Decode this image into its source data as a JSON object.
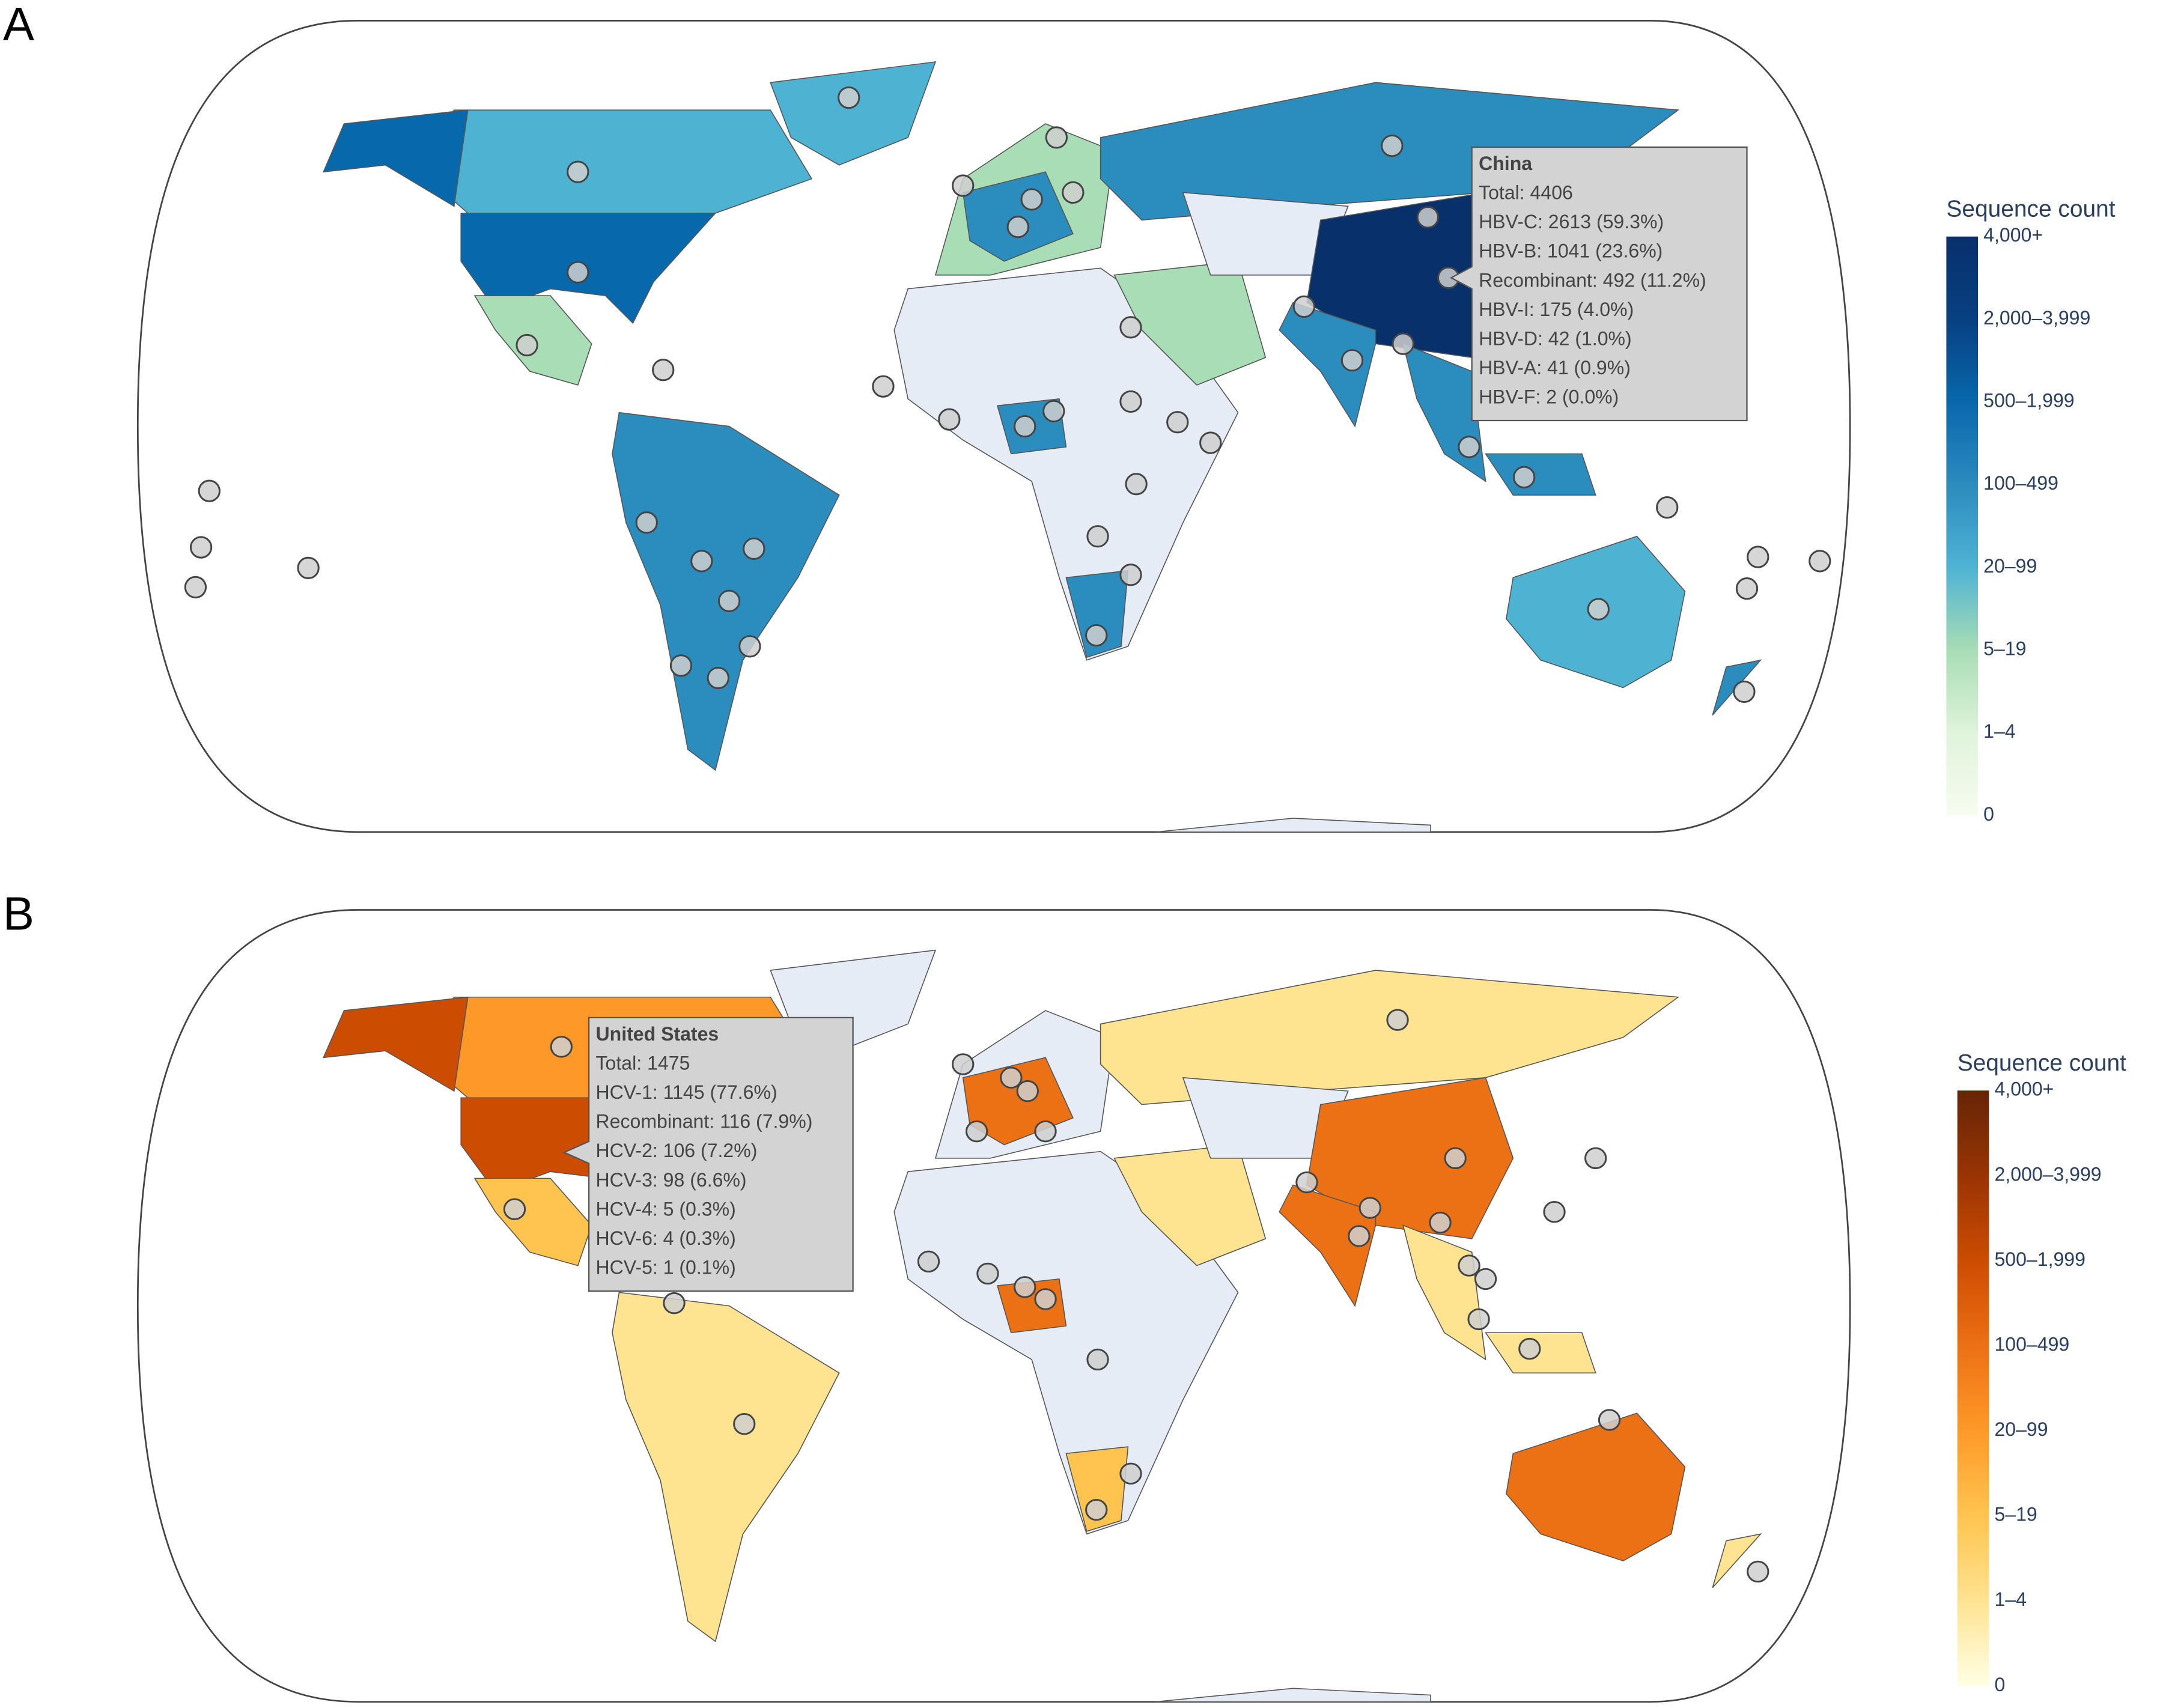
{
  "panels": [
    {
      "label": "A",
      "legend": {
        "title": "Sequence count",
        "ticks": [
          "4,000+",
          "2,000–3,999",
          "500–1,999",
          "100–499",
          "20–99",
          "5–19",
          "1–4",
          "0"
        ],
        "colors": [
          "#08306b",
          "#084081",
          "#0868ac",
          "#2b8cbe",
          "#4eb3d3",
          "#a8ddb5",
          "#e0f3db",
          "#f7fcf0"
        ]
      },
      "tooltip": {
        "title": "China",
        "lines": [
          "Total: 4406",
          "HBV-C: 2613 (59.3%)",
          "HBV-B: 1041 (23.6%)",
          "Recombinant: 492 (11.2%)",
          "HBV-I: 175 (4.0%)",
          "HBV-D: 42 (1.0%)",
          "HBV-A: 41 (0.9%)",
          "HBV-F: 2 (0.0%)"
        ]
      }
    },
    {
      "label": "B",
      "legend": {
        "title": "Sequence count",
        "ticks": [
          "4,000+",
          "2,000–3,999",
          "500–1,999",
          "100–499",
          "20–99",
          "5–19",
          "1–4",
          "0"
        ],
        "colors": [
          "#662506",
          "#993404",
          "#cc4c02",
          "#ec7014",
          "#fe9929",
          "#fec44f",
          "#fee391",
          "#ffffe5"
        ]
      },
      "tooltip": {
        "title": "United States",
        "lines": [
          "Total: 1475",
          "HCV-1: 1145 (77.6%)",
          "Recombinant: 116 (7.9%)",
          "HCV-2: 106 (7.2%)",
          "HCV-3: 98 (6.6%)",
          "HCV-4: 5 (0.3%)",
          "HCV-6: 4 (0.3%)",
          "HCV-5: 1 (0.1%)"
        ]
      }
    }
  ]
}
